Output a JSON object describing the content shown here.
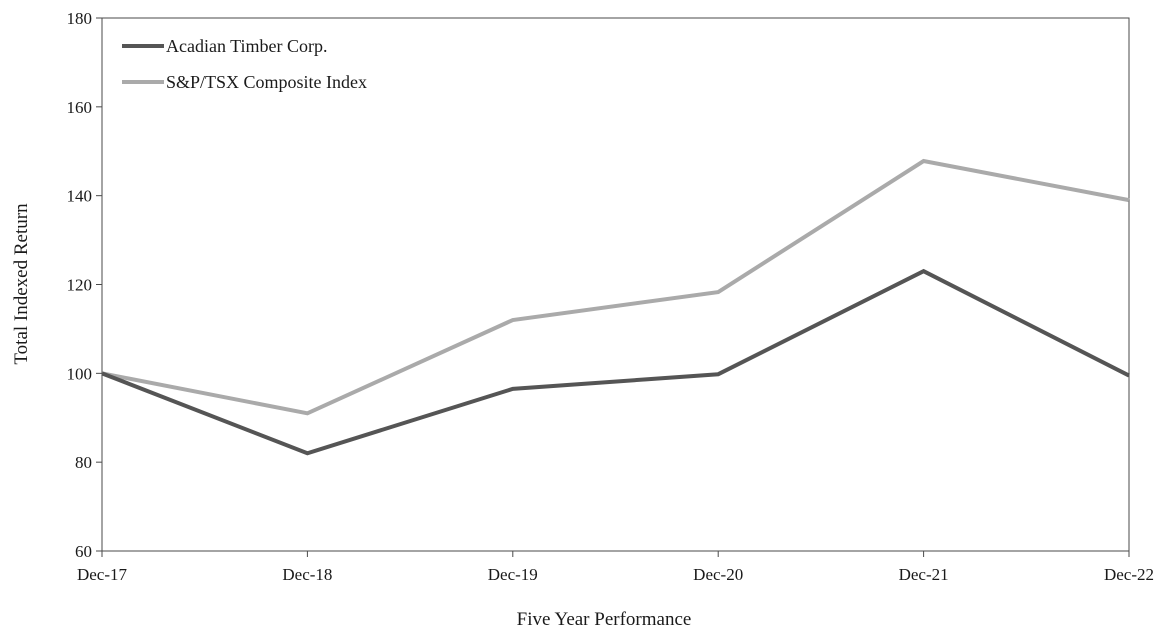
{
  "chart_data": {
    "type": "line",
    "xlabel": "Five Year Performance",
    "ylabel": "Total Indexed Return",
    "categories": [
      "Dec-17",
      "Dec-18",
      "Dec-19",
      "Dec-20",
      "Dec-21",
      "Dec-22"
    ],
    "ylim": [
      60,
      180
    ],
    "yticks": [
      60,
      80,
      100,
      120,
      140,
      160,
      180
    ],
    "grid": false,
    "legend_position": "top-left",
    "series": [
      {
        "name": "Acadian Timber Corp.",
        "color": "#555555",
        "values": [
          100,
          82,
          96.5,
          99.8,
          123,
          99.5
        ]
      },
      {
        "name": "S&P/TSX Composite Index",
        "color": "#aaaaaa",
        "values": [
          100,
          91,
          112,
          118.3,
          147.8,
          139
        ]
      }
    ]
  }
}
